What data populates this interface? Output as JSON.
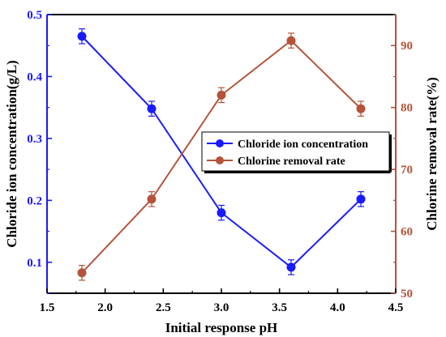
{
  "chart_data": {
    "type": "line",
    "title": "",
    "xlabel": "Initial response pH",
    "ylabel_left": "Chloride ion concentration(g/L)",
    "ylabel_right": "Chlorine removal rate(%)",
    "xlim": [
      1.5,
      4.5
    ],
    "ylim_left": [
      0.05,
      0.5
    ],
    "ylim_right": [
      50,
      95
    ],
    "x_ticks": [
      1.5,
      2.0,
      2.5,
      3.0,
      3.5,
      4.0,
      4.5
    ],
    "x_tick_labels": [
      "1.5",
      "2.0",
      "2.5",
      "3.0",
      "3.5",
      "4.0",
      "4.5"
    ],
    "y_left_ticks": [
      0.1,
      0.2,
      0.3,
      0.4,
      0.5
    ],
    "y_left_tick_labels": [
      "0.1",
      "0.2",
      "0.3",
      "0.4",
      "0.5"
    ],
    "y_right_ticks": [
      50,
      60,
      70,
      80,
      90
    ],
    "y_right_tick_labels": [
      "50",
      "60",
      "70",
      "80",
      "90"
    ],
    "grid": false,
    "legend_position": "center-right",
    "series": [
      {
        "name": "Chloride ion concentration",
        "axis": "left",
        "color": "#1a1aff",
        "marker": "circle",
        "x": [
          1.8,
          2.4,
          3.0,
          3.6,
          4.2
        ],
        "y": [
          0.465,
          0.348,
          0.18,
          0.092,
          0.202
        ],
        "error": [
          0.012,
          0.012,
          0.012,
          0.012,
          0.012
        ]
      },
      {
        "name": "Chlorine removal rate",
        "axis": "right",
        "color": "#b5533a",
        "marker": "circle",
        "x": [
          1.8,
          2.4,
          3.0,
          3.6,
          4.2
        ],
        "y": [
          53.3,
          65.2,
          82.0,
          90.8,
          79.8
        ],
        "error": [
          1.2,
          1.2,
          1.2,
          1.2,
          1.2
        ]
      }
    ]
  },
  "colors": {
    "left_axis": "#1a1aff",
    "right_axis": "#b5533a",
    "bottom_axis": "#000000"
  }
}
